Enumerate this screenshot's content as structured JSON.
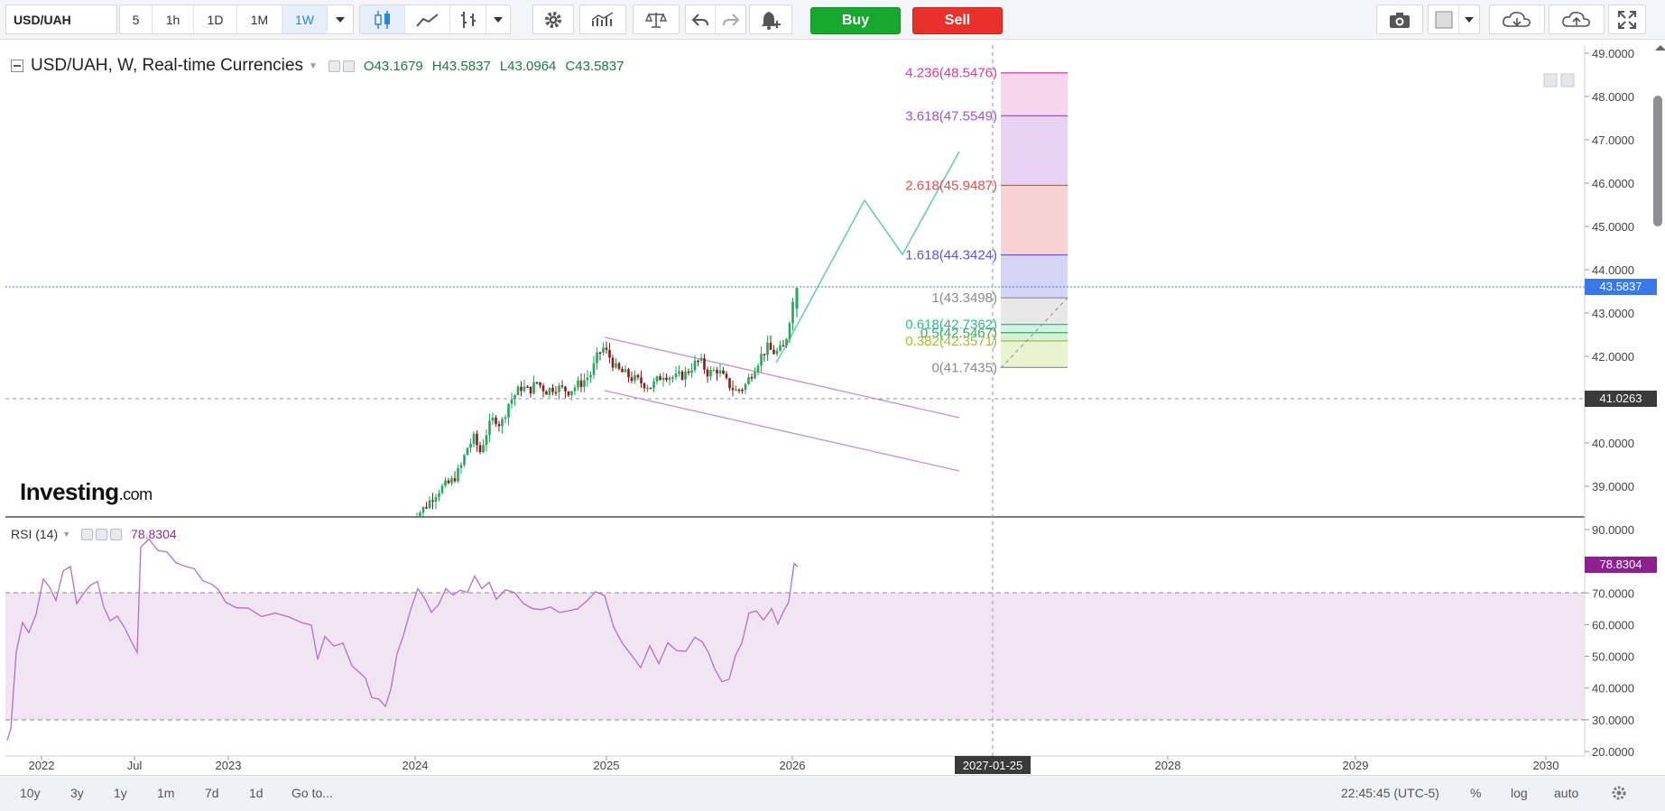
{
  "toolbar": {
    "symbol": "USD/UAH",
    "intervals": [
      "5",
      "1h",
      "1D",
      "1M",
      "1W"
    ],
    "active_interval": "1W",
    "buy_label": "Buy",
    "sell_label": "Sell"
  },
  "legend": {
    "title": "USD/UAH, W, Real-time Currencies",
    "open": "O43.1679",
    "high": "H43.5837",
    "low": "L43.0964",
    "close": "C43.5837"
  },
  "rsi": {
    "label": "RSI (14)",
    "value": "78.8304",
    "overbought": 70,
    "oversold": 30
  },
  "watermark": {
    "brand": "Investing",
    "suffix": ".com"
  },
  "chart_data": {
    "type": "candlestick",
    "price_axis": {
      "ticks": [
        "49.0000",
        "48.0000",
        "47.0000",
        "46.0000",
        "45.0000",
        "44.0000",
        "43.0000",
        "42.0000",
        "41.0000",
        "40.0000",
        "39.0000"
      ],
      "current_price": "43.5837",
      "crosshair_price": "41.0263"
    },
    "rsi_axis": {
      "ticks": [
        "90.0000",
        "80.0000",
        "70.0000",
        "60.0000",
        "50.0000",
        "40.0000",
        "30.0000",
        "20.0000"
      ]
    },
    "time_axis": {
      "labels": [
        "2022",
        "Jul",
        "2023",
        "2024",
        "2025",
        "2026",
        "2028",
        "2029",
        "2030"
      ],
      "crosshair_date": "2027-01-25"
    },
    "fibonacci": [
      {
        "label": "4.236(48.5476)",
        "price": 48.5476,
        "color": "#d63f9f",
        "fill": "#f7d5ea"
      },
      {
        "label": "3.618(47.5549)",
        "price": 47.5549,
        "color": "#a152d1",
        "fill": "#e7d3f4"
      },
      {
        "label": "2.618(45.9487)",
        "price": 45.9487,
        "color": "#e04c4c",
        "fill": "#f6d2d2"
      },
      {
        "label": "1.618(44.3424)",
        "price": 44.3424,
        "color": "#5b55d6",
        "fill": "#d4d4f6"
      },
      {
        "label": "1(43.3498)",
        "price": 43.3498,
        "color": "#8a8a8a",
        "fill": "#e8e8e8"
      },
      {
        "label": "0.618(42.7362)",
        "price": 42.7362,
        "color": "#2fb98a",
        "fill": "#d3f1e4"
      },
      {
        "label": "0.5(42.5467)",
        "price": 42.5467,
        "color": "#3aa860",
        "fill": "#d9f0d8"
      },
      {
        "label": "0.382(42.3571)",
        "price": 42.3571,
        "color": "#9cc32e",
        "fill": "#e9f3cf"
      },
      {
        "label": "0(41.7435)",
        "price": 41.7435,
        "color": "#8a8a8a",
        "fill": "#ffffff"
      }
    ]
  },
  "bottombar": {
    "ranges": [
      "10y",
      "3y",
      "1y",
      "1m",
      "7d",
      "1d",
      "Go to..."
    ],
    "clock": "22:45:45 (UTC-5)",
    "percent": "%",
    "log": "log",
    "auto": "auto"
  },
  "colors": {
    "up": "#26a65b",
    "down": "#8b1a1a",
    "rsi_line": "#b36fcf",
    "rsi_band": "#f1e4f3",
    "projection": "#6fcbb6",
    "channel": "#c98fd6",
    "price_tag": "#3b78e7",
    "rsi_tag": "#8e1f8e"
  }
}
